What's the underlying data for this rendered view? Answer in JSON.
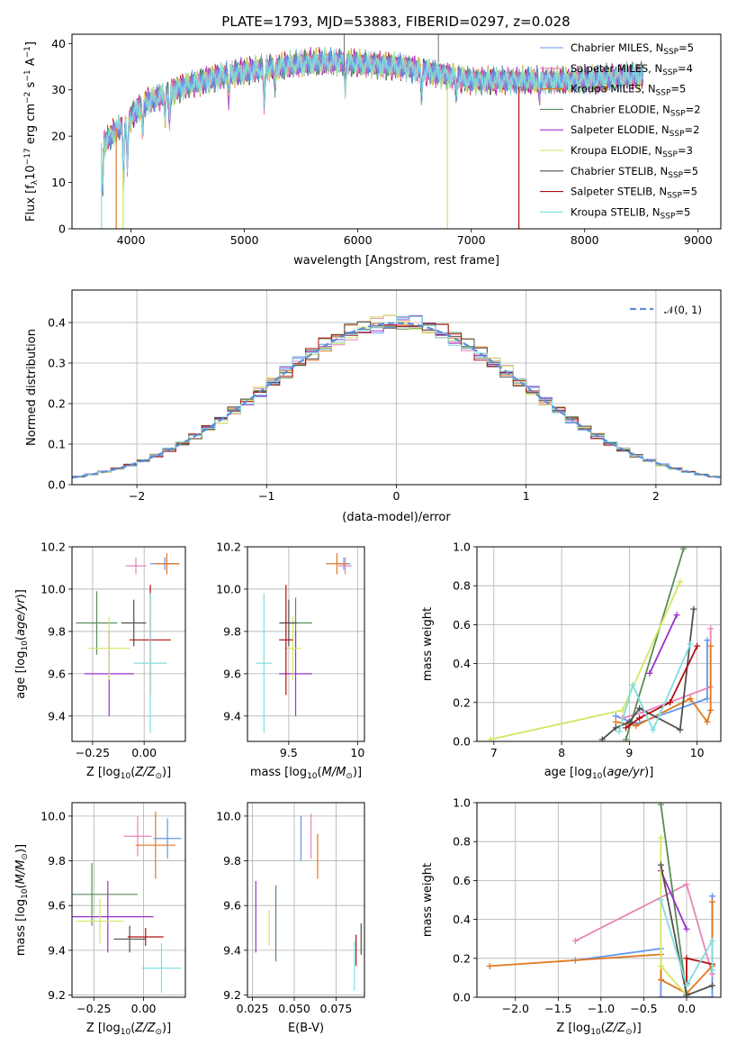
{
  "figure_title": "PLATE=1793, MJD=53883, FIBERID=0297, z=0.028",
  "colors": [
    "#6495ed",
    "#e884b8",
    "#e07820",
    "#5a8c5a",
    "#9b30c8",
    "#d4e660",
    "#505050",
    "#b01010",
    "#80dede"
  ],
  "chart_data": [
    {
      "type": "line",
      "xlabel": "wavelength [Angstrom, rest frame]",
      "ylabel": "Flux [f_λ 10^-17 erg cm^-2 s^-1 A^-1]",
      "xlim": [
        3480,
        9200
      ],
      "ylim": [
        0,
        42
      ],
      "xticks": [
        4000,
        5000,
        6000,
        7000,
        8000,
        9000
      ],
      "yticks": [
        0,
        10,
        20,
        30,
        40
      ],
      "legend_position": "upper right",
      "series": [
        {
          "name": "Chabrier MILES",
          "nssp": "5"
        },
        {
          "name": "Salpeter MILES",
          "nssp": "4"
        },
        {
          "name": "Kroupa MILES",
          "nssp": "5"
        },
        {
          "name": "Chabrier ELODIE",
          "nssp": "2"
        },
        {
          "name": "Salpeter ELODIE",
          "nssp": "2"
        },
        {
          "name": "Kroupa ELODIE",
          "nssp": "3"
        },
        {
          "name": "Chabrier STELIB",
          "nssp": "5"
        },
        {
          "name": "Salpeter STELIB",
          "nssp": "5"
        },
        {
          "name": "Kroupa STELIB",
          "nssp": "5"
        }
      ],
      "continuum": [
        [
          3740,
          18
        ],
        [
          3900,
          22
        ],
        [
          4000,
          24
        ],
        [
          4100,
          27
        ],
        [
          4300,
          29
        ],
        [
          4500,
          31
        ],
        [
          4800,
          33
        ],
        [
          5000,
          34
        ],
        [
          5300,
          35
        ],
        [
          5600,
          36
        ],
        [
          5900,
          36
        ],
        [
          6100,
          35.5
        ],
        [
          6400,
          35
        ],
        [
          6600,
          34
        ],
        [
          6800,
          33
        ],
        [
          7000,
          32
        ],
        [
          7200,
          32
        ],
        [
          7500,
          32
        ],
        [
          7800,
          32
        ],
        [
          8000,
          32
        ],
        [
          8200,
          32.5
        ],
        [
          8400,
          33
        ],
        [
          8520,
          33
        ]
      ],
      "features": [
        [
          3750,
          -10
        ],
        [
          3934,
          -14
        ],
        [
          3968,
          -10
        ],
        [
          4102,
          -6
        ],
        [
          4300,
          -5
        ],
        [
          4340,
          -6
        ],
        [
          4861,
          -5
        ],
        [
          5175,
          -7
        ],
        [
          5270,
          -4
        ],
        [
          5890,
          -6
        ],
        [
          6563,
          -5
        ],
        [
          6870,
          -3
        ],
        [
          7600,
          -3
        ]
      ]
    },
    {
      "type": "histogram",
      "xlabel": "(data-model)/error",
      "ylabel": "Normed distribution",
      "xlim": [
        -2.5,
        2.5
      ],
      "ylim": [
        0,
        0.48
      ],
      "xticks": [
        -2,
        -1,
        0,
        1,
        2
      ],
      "yticks": [
        0.0,
        0.1,
        0.2,
        0.3,
        0.4
      ],
      "bin_width": 0.1,
      "reference_curve": {
        "name": "𝒩(0, 1)",
        "mean": 0,
        "sigma": 1
      },
      "legend_position": "upper right"
    },
    {
      "type": "scatter_errorbar",
      "xlabel": "Z [log₁₀(Z/Z☉)]",
      "ylabel": "age  [log₁₀(age/yr)]",
      "xlim": [
        -0.35,
        0.2
      ],
      "ylim": [
        9.28,
        10.2
      ],
      "xticks": [
        -0.25,
        0.0
      ],
      "xtick_labels": [
        "−0.25",
        "0.00"
      ],
      "yticks": [
        9.4,
        9.6,
        9.8,
        10.0,
        10.2
      ],
      "points": [
        {
          "x": 0.1,
          "y": 10.12,
          "xerr": 0.07,
          "yerr": 0.03
        },
        {
          "x": -0.04,
          "y": 10.11,
          "xerr": 0.05,
          "yerr": 0.04
        },
        {
          "x": 0.11,
          "y": 10.12,
          "xerr": 0.06,
          "yerr": 0.05
        },
        {
          "x": -0.23,
          "y": 9.84,
          "xerr": 0.1,
          "yerr": 0.15
        },
        {
          "x": -0.17,
          "y": 9.6,
          "xerr": 0.12,
          "yerr": 0.2
        },
        {
          "x": -0.17,
          "y": 9.72,
          "xerr": 0.1,
          "yerr": 0.15
        },
        {
          "x": -0.05,
          "y": 9.84,
          "xerr": 0.06,
          "yerr": 0.11
        },
        {
          "x": 0.03,
          "y": 9.76,
          "xerr": 0.1,
          "yerr": 0.26
        },
        {
          "x": 0.03,
          "y": 9.65,
          "xerr": 0.08,
          "yerr": 0.33
        }
      ]
    },
    {
      "type": "scatter_errorbar",
      "xlabel": "mass [log₁₀(M/M☉)]",
      "ylabel": "",
      "xlim": [
        9.2,
        10.05
      ],
      "ylim": [
        9.28,
        10.2
      ],
      "xticks": [
        9.5,
        10.0
      ],
      "yticks": [
        9.4,
        9.6,
        9.8,
        10.0,
        10.2
      ],
      "points": [
        {
          "x": 9.9,
          "y": 10.12,
          "xerr": 0.05,
          "yerr": 0.03
        },
        {
          "x": 9.91,
          "y": 10.11,
          "xerr": 0.05,
          "yerr": 0.04
        },
        {
          "x": 9.85,
          "y": 10.12,
          "xerr": 0.08,
          "yerr": 0.05
        },
        {
          "x": 9.55,
          "y": 9.84,
          "xerr": 0.12,
          "yerr": 0.12
        },
        {
          "x": 9.55,
          "y": 9.6,
          "xerr": 0.12,
          "yerr": 0.2
        },
        {
          "x": 9.53,
          "y": 9.72,
          "xerr": 0.06,
          "yerr": 0.15
        },
        {
          "x": 9.5,
          "y": 9.84,
          "xerr": 0.06,
          "yerr": 0.11
        },
        {
          "x": 9.48,
          "y": 9.76,
          "xerr": 0.05,
          "yerr": 0.26
        },
        {
          "x": 9.32,
          "y": 9.65,
          "xerr": 0.06,
          "yerr": 0.33
        }
      ]
    },
    {
      "type": "line",
      "xlabel": "age  [log₁₀(age/yr)]",
      "ylabel": "mass weight",
      "xlim": [
        6.75,
        10.35
      ],
      "ylim": [
        0,
        1
      ],
      "xticks": [
        7,
        8,
        9,
        10
      ],
      "yticks": [
        0.0,
        0.2,
        0.4,
        0.6,
        0.8,
        1.0
      ],
      "series": [
        {
          "x": [
            8.8,
            9.1,
            10.15,
            10.15
          ],
          "y": [
            0.13,
            0.09,
            0.22,
            0.52
          ]
        },
        {
          "x": [
            8.9,
            9.2,
            10.2,
            10.2
          ],
          "y": [
            0.12,
            0.15,
            0.28,
            0.58
          ]
        },
        {
          "x": [
            8.8,
            9.1,
            9.9,
            10.15,
            10.2,
            10.2
          ],
          "y": [
            0.1,
            0.08,
            0.22,
            0.1,
            0.16,
            0.49
          ]
        },
        {
          "x": [
            8.95,
            9.8
          ],
          "y": [
            0.01,
            0.99
          ]
        },
        {
          "x": [
            9.3,
            9.7
          ],
          "y": [
            0.35,
            0.65
          ]
        },
        {
          "x": [
            6.95,
            8.9,
            9.75
          ],
          "y": [
            0.01,
            0.16,
            0.82
          ]
        },
        {
          "x": [
            8.6,
            8.8,
            9.0,
            9.15,
            9.75,
            9.95
          ],
          "y": [
            0.01,
            0.07,
            0.1,
            0.17,
            0.06,
            0.68
          ]
        },
        {
          "x": [
            8.95,
            9.15,
            9.6,
            10.0
          ],
          "y": [
            0.07,
            0.12,
            0.2,
            0.49
          ]
        },
        {
          "x": [
            8.85,
            9.05,
            9.35,
            9.45,
            9.9
          ],
          "y": [
            0.05,
            0.29,
            0.06,
            0.14,
            0.5
          ]
        }
      ]
    },
    {
      "type": "scatter_errorbar",
      "xlabel": "Z [log₁₀(Z/Z☉)]",
      "ylabel": "mass [log₁₀(M/M☉)]",
      "xlim": [
        -0.36,
        0.21
      ],
      "ylim": [
        9.19,
        10.06
      ],
      "xticks": [
        -0.25,
        0.0
      ],
      "xtick_labels": [
        "−0.25",
        "0.00"
      ],
      "yticks": [
        9.2,
        9.4,
        9.6,
        9.8,
        10.0
      ],
      "points": [
        {
          "x": 0.12,
          "y": 9.9,
          "xerr": 0.07,
          "yerr": 0.09
        },
        {
          "x": -0.03,
          "y": 9.91,
          "xerr": 0.07,
          "yerr": 0.09
        },
        {
          "x": 0.06,
          "y": 9.87,
          "xerr": 0.1,
          "yerr": 0.15
        },
        {
          "x": -0.26,
          "y": 9.65,
          "xerr": 0.23,
          "yerr": 0.14
        },
        {
          "x": -0.18,
          "y": 9.55,
          "xerr": 0.23,
          "yerr": 0.16
        },
        {
          "x": -0.22,
          "y": 9.53,
          "xerr": 0.12,
          "yerr": 0.1
        },
        {
          "x": -0.07,
          "y": 9.45,
          "xerr": 0.08,
          "yerr": 0.06
        },
        {
          "x": 0.01,
          "y": 9.46,
          "xerr": 0.09,
          "yerr": 0.04
        },
        {
          "x": 0.09,
          "y": 9.32,
          "xerr": 0.1,
          "yerr": 0.11
        }
      ]
    },
    {
      "type": "scatter_errorbar",
      "xlabel": "E(B-V)",
      "ylabel": "",
      "xlim": [
        0.022,
        0.092
      ],
      "ylim": [
        9.19,
        10.06
      ],
      "xticks": [
        0.025,
        0.05,
        0.075
      ],
      "xtick_labels": [
        "0.025",
        "0.050",
        "0.075"
      ],
      "yticks": [
        9.2,
        9.4,
        9.6,
        9.8,
        10.0
      ],
      "points": [
        {
          "x": 0.054,
          "y": 9.9,
          "xerr": 0,
          "yerr": 0.1
        },
        {
          "x": 0.06,
          "y": 9.91,
          "xerr": 0,
          "yerr": 0.1
        },
        {
          "x": 0.064,
          "y": 9.82,
          "xerr": 0,
          "yerr": 0.1
        },
        {
          "x": 0.039,
          "y": 9.52,
          "xerr": 0,
          "yerr": 0.17
        },
        {
          "x": 0.027,
          "y": 9.55,
          "xerr": 0,
          "yerr": 0.16
        },
        {
          "x": 0.035,
          "y": 9.5,
          "xerr": 0,
          "yerr": 0.08
        },
        {
          "x": 0.09,
          "y": 9.45,
          "xerr": 0,
          "yerr": 0.07
        },
        {
          "x": 0.087,
          "y": 9.4,
          "xerr": 0,
          "yerr": 0.07
        },
        {
          "x": 0.086,
          "y": 9.33,
          "xerr": 0,
          "yerr": 0.11
        }
      ]
    },
    {
      "type": "line",
      "xlabel": "Z [log₁₀(Z/Z☉)]",
      "ylabel": "mass weight",
      "xlim": [
        -2.45,
        0.4
      ],
      "ylim": [
        0,
        1
      ],
      "xticks": [
        -2.0,
        -1.5,
        -1.0,
        -0.5,
        0.0
      ],
      "xtick_labels": [
        "−2.0",
        "−1.5",
        "−1.0",
        "−0.5",
        "0.0"
      ],
      "yticks": [
        0.0,
        0.2,
        0.4,
        0.6,
        0.8,
        1.0
      ],
      "series": [
        {
          "x": [
            -1.3,
            -0.3,
            -0.3,
            0.3,
            0.3
          ],
          "y": [
            0.19,
            0.25,
            0.0,
            0.0,
            0.52
          ]
        },
        {
          "x": [
            -1.3,
            0.0,
            0.3
          ],
          "y": [
            0.29,
            0.58,
            0.12
          ]
        },
        {
          "x": [
            -2.3,
            -0.3,
            -0.3,
            0.0,
            0.3,
            0.3
          ],
          "y": [
            0.16,
            0.22,
            0.09,
            0.02,
            0.16,
            0.49
          ]
        },
        {
          "x": [
            -0.3,
            0.0
          ],
          "y": [
            0.99,
            0.01
          ]
        },
        {
          "x": [
            -0.3,
            0.0
          ],
          "y": [
            0.65,
            0.35
          ]
        },
        {
          "x": [
            -0.3,
            -0.3,
            0.0
          ],
          "y": [
            0.82,
            0.16,
            0.01
          ]
        },
        {
          "x": [
            -0.3,
            0.0,
            0.3
          ],
          "y": [
            0.68,
            0.01,
            0.06
          ]
        },
        {
          "x": [
            0.0,
            0.0,
            0.3
          ],
          "y": [
            0.07,
            0.2,
            0.17
          ]
        },
        {
          "x": [
            -0.3,
            0.0,
            0.3,
            0.3
          ],
          "y": [
            0.5,
            0.06,
            0.29,
            0.14
          ]
        }
      ]
    }
  ]
}
